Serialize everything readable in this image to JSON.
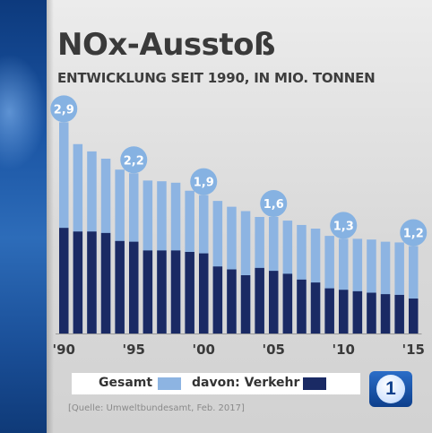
{
  "header": {
    "title": "NOx-Ausstoß",
    "subtitle": "ENTWICKLUNG SEIT 1990, IN MIO. TONNEN"
  },
  "legend": {
    "total_label": "Gesamt",
    "traffic_label": "davon: Verkehr"
  },
  "source": "[Quelle: Umweltbundesamt, Feb. 2017]",
  "logo": {
    "text": "1"
  },
  "colors": {
    "total": "#8db4e2",
    "traffic": "#1a2a64",
    "badge": "#86b2e2",
    "accent": "#1a54a3"
  },
  "chart_data": {
    "type": "bar",
    "x": [
      1990,
      1991,
      1992,
      1993,
      1994,
      1995,
      1996,
      1997,
      1998,
      1999,
      2000,
      2001,
      2002,
      2003,
      2004,
      2005,
      2006,
      2007,
      2008,
      2009,
      2010,
      2011,
      2012,
      2013,
      2014,
      2015
    ],
    "tick_labels": [
      "'90",
      "'95",
      "'00",
      "'05",
      "'10",
      "'15"
    ],
    "tick_years": [
      1990,
      1995,
      2000,
      2005,
      2010,
      2015
    ],
    "series": [
      {
        "name": "Gesamt",
        "values": [
          2.9,
          2.6,
          2.5,
          2.4,
          2.25,
          2.2,
          2.1,
          2.09,
          2.07,
          1.96,
          1.9,
          1.82,
          1.74,
          1.68,
          1.6,
          1.6,
          1.55,
          1.49,
          1.44,
          1.34,
          1.3,
          1.3,
          1.29,
          1.26,
          1.25,
          1.2
        ]
      },
      {
        "name": "davon: Verkehr",
        "values": [
          1.45,
          1.4,
          1.4,
          1.38,
          1.27,
          1.26,
          1.14,
          1.14,
          1.14,
          1.12,
          1.1,
          0.92,
          0.88,
          0.8,
          0.9,
          0.86,
          0.82,
          0.74,
          0.7,
          0.62,
          0.6,
          0.58,
          0.56,
          0.54,
          0.53,
          0.48
        ]
      }
    ],
    "annotations": [
      {
        "x": 1990,
        "label": "2,9"
      },
      {
        "x": 1995,
        "label": "2,2"
      },
      {
        "x": 2000,
        "label": "1,9"
      },
      {
        "x": 2005,
        "label": "1,6"
      },
      {
        "x": 2010,
        "label": "1,3"
      },
      {
        "x": 2015,
        "label": "1,2"
      }
    ],
    "ylim": [
      0,
      3.2
    ],
    "grid": false
  }
}
